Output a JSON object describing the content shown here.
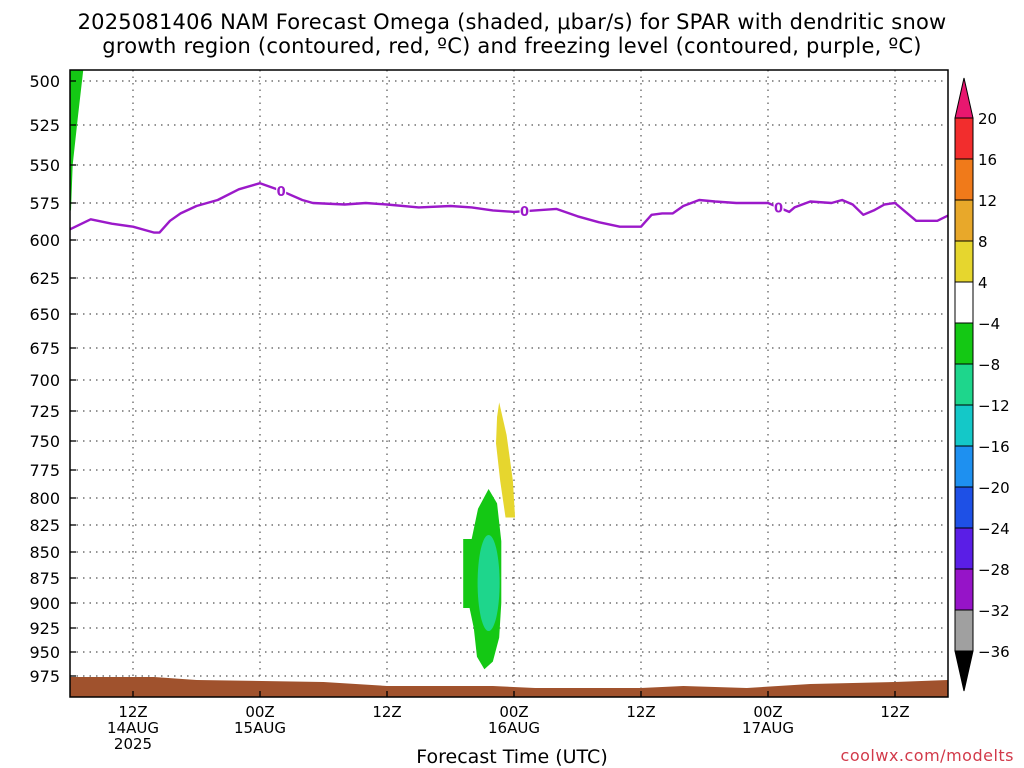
{
  "title_line1": "2025081406 NAM Forecast Omega (shaded, μbar/s) for SPAR with dendritic snow",
  "title_line2": "growth region (contoured, red, ºC) and freezing level (contoured, purple, ºC)",
  "xaxis_title": "Forecast Time (UTC)",
  "credit": "coolwx.com/modelts",
  "chart_data": {
    "type": "heatmap",
    "ylabel_ticks": [
      "500",
      "525",
      "550",
      "575",
      "600",
      "625",
      "650",
      "675",
      "700",
      "725",
      "750",
      "775",
      "800",
      "825",
      "850",
      "875",
      "900",
      "925",
      "950",
      "975"
    ],
    "y_values": [
      500,
      525,
      550,
      575,
      600,
      625,
      650,
      675,
      700,
      725,
      750,
      775,
      800,
      825,
      850,
      875,
      900,
      925,
      950,
      975
    ],
    "y_axis": "pressure (hPa), inverted",
    "x_ticks": [
      {
        "hour": 6,
        "line1": "12Z",
        "line2": "14AUG",
        "line3": "2025"
      },
      {
        "hour": 18,
        "line1": "00Z",
        "line2": "15AUG",
        "line3": ""
      },
      {
        "hour": 30,
        "line1": "12Z",
        "line2": "",
        "line3": ""
      },
      {
        "hour": 42,
        "line1": "00Z",
        "line2": "16AUG",
        "line3": ""
      },
      {
        "hour": 54,
        "line1": "12Z",
        "line2": "",
        "line3": ""
      },
      {
        "hour": 66,
        "line1": "00Z",
        "line2": "17AUG",
        "line3": ""
      },
      {
        "hour": 78,
        "line1": "12Z",
        "line2": "",
        "line3": ""
      }
    ],
    "x_range_hours": [
      0,
      84
    ],
    "colorbar": {
      "labels": [
        "20",
        "16",
        "12",
        "8",
        "4",
        "−4",
        "−8",
        "−12",
        "−16",
        "−20",
        "−24",
        "−28",
        "−32",
        "−36"
      ],
      "colors": [
        "#e8176f",
        "#f22d2d",
        "#f07a1a",
        "#e8a82a",
        "#e6d62e",
        "#ffffff",
        "#14c814",
        "#1ed68c",
        "#14c8c8",
        "#1e90f0",
        "#1e50e6",
        "#5a1ee6",
        "#9614c8",
        "#a0a0a0",
        "#000000"
      ]
    },
    "freezing_level_0C": {
      "color": "#9b19c9",
      "label": "0",
      "hours": [
        0,
        2,
        4,
        6,
        8,
        8.5,
        9.5,
        10.5,
        12,
        14,
        16,
        18,
        20,
        22,
        23,
        26,
        28,
        30,
        33,
        36,
        38,
        40,
        42,
        44,
        46,
        48,
        50,
        52,
        54,
        55,
        56,
        57,
        58,
        59.5,
        61,
        63,
        64,
        66,
        68,
        68.5,
        70,
        72,
        73,
        74,
        75,
        76,
        77,
        78,
        80,
        82,
        84
      ],
      "pressure": [
        593,
        586,
        589,
        591,
        595,
        595,
        587,
        582,
        577,
        573,
        566,
        562,
        567,
        573,
        575,
        576,
        575,
        576,
        578,
        577,
        578,
        580,
        581,
        580,
        579,
        584,
        588,
        591,
        591,
        583,
        582,
        582,
        577,
        573,
        574,
        575,
        575,
        575,
        581,
        578,
        574,
        575,
        573,
        576,
        583,
        580,
        576,
        575,
        587,
        587,
        580
      ],
      "label_hours": [
        20,
        43,
        67
      ]
    },
    "omega_regions": [
      {
        "value_range": "4 to 8",
        "color": "#e6d62e",
        "hours": [
          40.5,
          41.5,
          42,
          41.8,
          40.5
        ],
        "pressure": [
          718,
          770,
          812,
          818,
          740
        ]
      },
      {
        "value_range": "-4 to -8",
        "color": "#14c814"
      },
      {
        "value_range": "-8 to -12",
        "color": "#1ed68c"
      },
      {
        "value_range": "-4 to -8",
        "color": "#14c814",
        "note": "upper-left edge near 500-575"
      }
    ],
    "ground_color": "#a0522d"
  }
}
